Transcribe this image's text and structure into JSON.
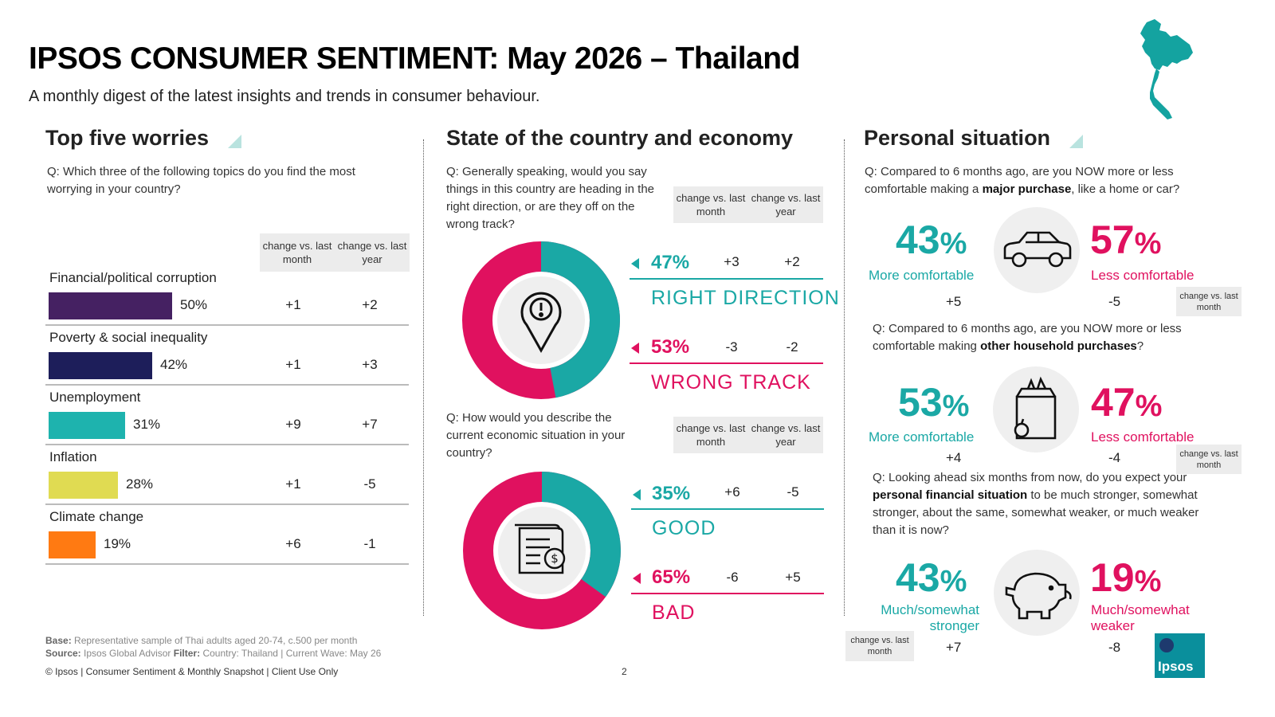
{
  "header": {
    "title": "IPSOS CONSUMER SENTIMENT: May 2026 – Thailand",
    "subtitle": "A monthly digest of the latest insights and trends in consumer behaviour."
  },
  "colors": {
    "teal": "#1aa8a5",
    "pink": "#e0115f",
    "corruption": "#452162",
    "poverty": "#1d1e5a",
    "unemployment": "#1eb3ae",
    "inflation": "#e0db52",
    "climate": "#ff7a12"
  },
  "worries": {
    "title": "Top five worries",
    "question": "Q: Which three of the following topics do you find the most worrying in your country?",
    "hdr_month": "change vs. last month",
    "hdr_year": "change vs. last year",
    "items": [
      {
        "label": "Financial/political corruption",
        "pct": "50%",
        "value": 50,
        "month": "+1",
        "year": "+2"
      },
      {
        "label": "Poverty & social inequality",
        "pct": "42%",
        "value": 42,
        "month": "+1",
        "year": "+3"
      },
      {
        "label": "Unemployment",
        "pct": "31%",
        "value": 31,
        "month": "+9",
        "year": "+7"
      },
      {
        "label": "Inflation",
        "pct": "28%",
        "value": 28,
        "month": "+1",
        "year": "-5"
      },
      {
        "label": "Climate change",
        "pct": "19%",
        "value": 19,
        "month": "+6",
        "year": "-1"
      }
    ]
  },
  "country": {
    "title": "State of the country and economy",
    "q1": "Q: Generally speaking, would you say things in this country are heading in the right direction, or are they off on the wrong track?",
    "q1_hdr_month": "change vs. last month",
    "q1_hdr_year": "change vs. last year",
    "right": {
      "pct": "47%",
      "value": 47,
      "month": "+3",
      "year": "+2",
      "label": "RIGHT DIRECTION"
    },
    "wrong": {
      "pct": "53%",
      "value": 53,
      "month": "-3",
      "year": "-2",
      "label": "WRONG TRACK"
    },
    "q2": "Q: How would you describe the current economic situation in your country?",
    "q2_hdr_month": "change vs. last month",
    "q2_hdr_year": "change vs. last year",
    "good": {
      "pct": "35%",
      "value": 35,
      "month": "+6",
      "year": "-5",
      "label": "GOOD"
    },
    "bad": {
      "pct": "65%",
      "value": 65,
      "month": "-6",
      "year": "+5",
      "label": "BAD"
    },
    "icon1": "location-alert-icon",
    "icon2": "invoice-dollar-icon"
  },
  "personal": {
    "title": "Personal situation",
    "q1_pre": "Q: Compared to 6 months ago, are you NOW more or less comfortable making a ",
    "q1_bold": "major purchase",
    "q1_post": ", like a home or car?",
    "major": {
      "more_pct": "43",
      "more_label": "More comfortable",
      "more_chg": "+5",
      "less_pct": "57",
      "less_label": "Less comfortable",
      "less_chg": "-5",
      "icon": "car-icon"
    },
    "q2_pre": "Q: Compared to 6 months ago, are you NOW more or less comfortable making ",
    "q2_bold": "other household purchases",
    "q2_post": "?",
    "household": {
      "more_pct": "53",
      "more_label": "More comfortable",
      "more_chg": "+4",
      "less_pct": "47",
      "less_label": "Less comfortable",
      "less_chg": "-4",
      "icon": "grocery-bag-icon"
    },
    "q3_pre": "Q: Looking ahead six months from now, do you expect your ",
    "q3_bold": "personal financial situation",
    "q3_post": " to be much stronger, somewhat stronger, about the same, somewhat weaker, or much weaker than it is now?",
    "future": {
      "more_pct": "43",
      "more_label": "Much/somewhat stronger",
      "more_chg": "+7",
      "less_pct": "19",
      "less_label": "Much/somewhat weaker",
      "less_chg": "-8",
      "icon": "piggy-bank-icon"
    },
    "pct_sign": "%",
    "chg_hdr": "change vs. last month"
  },
  "footer": {
    "base_label": "Base:",
    "base_text": "Representative sample of Thai adults aged 20-74, c.500 per month",
    "source_label": "Source:",
    "source_text": "Ipsos Global Advisor",
    "filter_label": "Filter:",
    "filter_text": "Country: Thailand | Current Wave: May 26",
    "copyright": "© Ipsos | Consumer Sentiment & Monthly Snapshot | Client Use Only",
    "page": "2",
    "logo": "Ipsos"
  }
}
